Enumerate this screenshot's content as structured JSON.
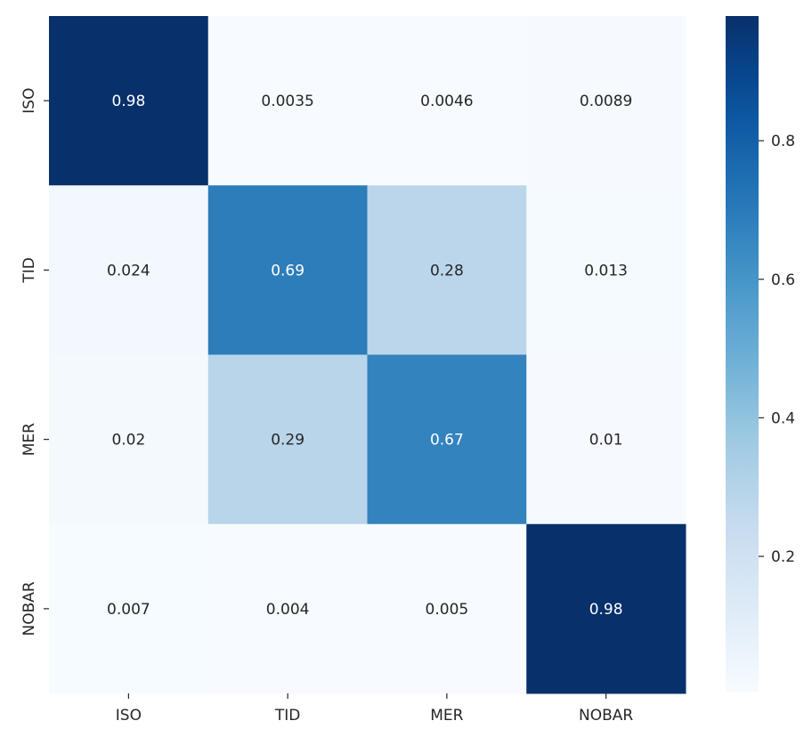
{
  "chart_data": {
    "type": "heatmap",
    "x_categories": [
      "ISO",
      "TID",
      "MER",
      "NOBAR"
    ],
    "y_categories": [
      "ISO",
      "TID",
      "MER",
      "NOBAR"
    ],
    "values": [
      [
        0.98,
        0.0035,
        0.0046,
        0.0089
      ],
      [
        0.024,
        0.69,
        0.28,
        0.013
      ],
      [
        0.02,
        0.29,
        0.67,
        0.01
      ],
      [
        0.007,
        0.004,
        0.005,
        0.98
      ]
    ],
    "value_labels": [
      [
        "0.98",
        "0.0035",
        "0.0046",
        "0.0089"
      ],
      [
        "0.024",
        "0.69",
        "0.28",
        "0.013"
      ],
      [
        "0.02",
        "0.29",
        "0.67",
        "0.01"
      ],
      [
        "0.007",
        "0.004",
        "0.005",
        "0.98"
      ]
    ],
    "colormap": "Blues",
    "colorbar": {
      "range": [
        0.0035,
        0.98
      ],
      "ticks": [
        0.2,
        0.4,
        0.6,
        0.8
      ],
      "tick_labels": [
        "0.2",
        "0.4",
        "0.6",
        "0.8"
      ]
    },
    "colors": {
      "low": "#f7fbff",
      "high": "#08306b",
      "text_dark": "#262626",
      "text_light": "#ffffff"
    }
  }
}
